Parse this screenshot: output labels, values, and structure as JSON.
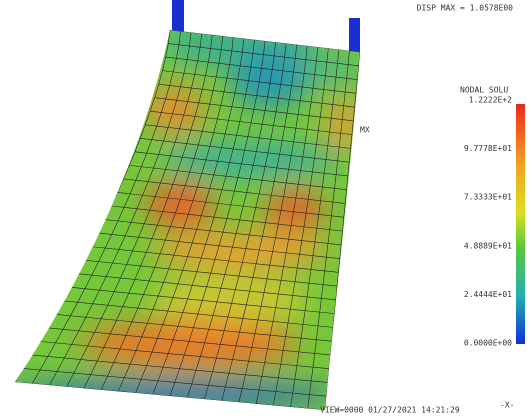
{
  "header": {
    "max_label": "DISP MAX = 1.0578E00"
  },
  "marker": "MX",
  "legend": {
    "title": "NODAL SOLU",
    "labels": [
      "1.2222E+2",
      "9.7778E+01",
      "7.3333E+01",
      "4.8889E+01",
      "2.4444E+01",
      "0.0000E+00"
    ]
  },
  "footer": {
    "view": "VIEW=0000 01/27/2021 14:21:29",
    "axis": "-X-"
  }
}
